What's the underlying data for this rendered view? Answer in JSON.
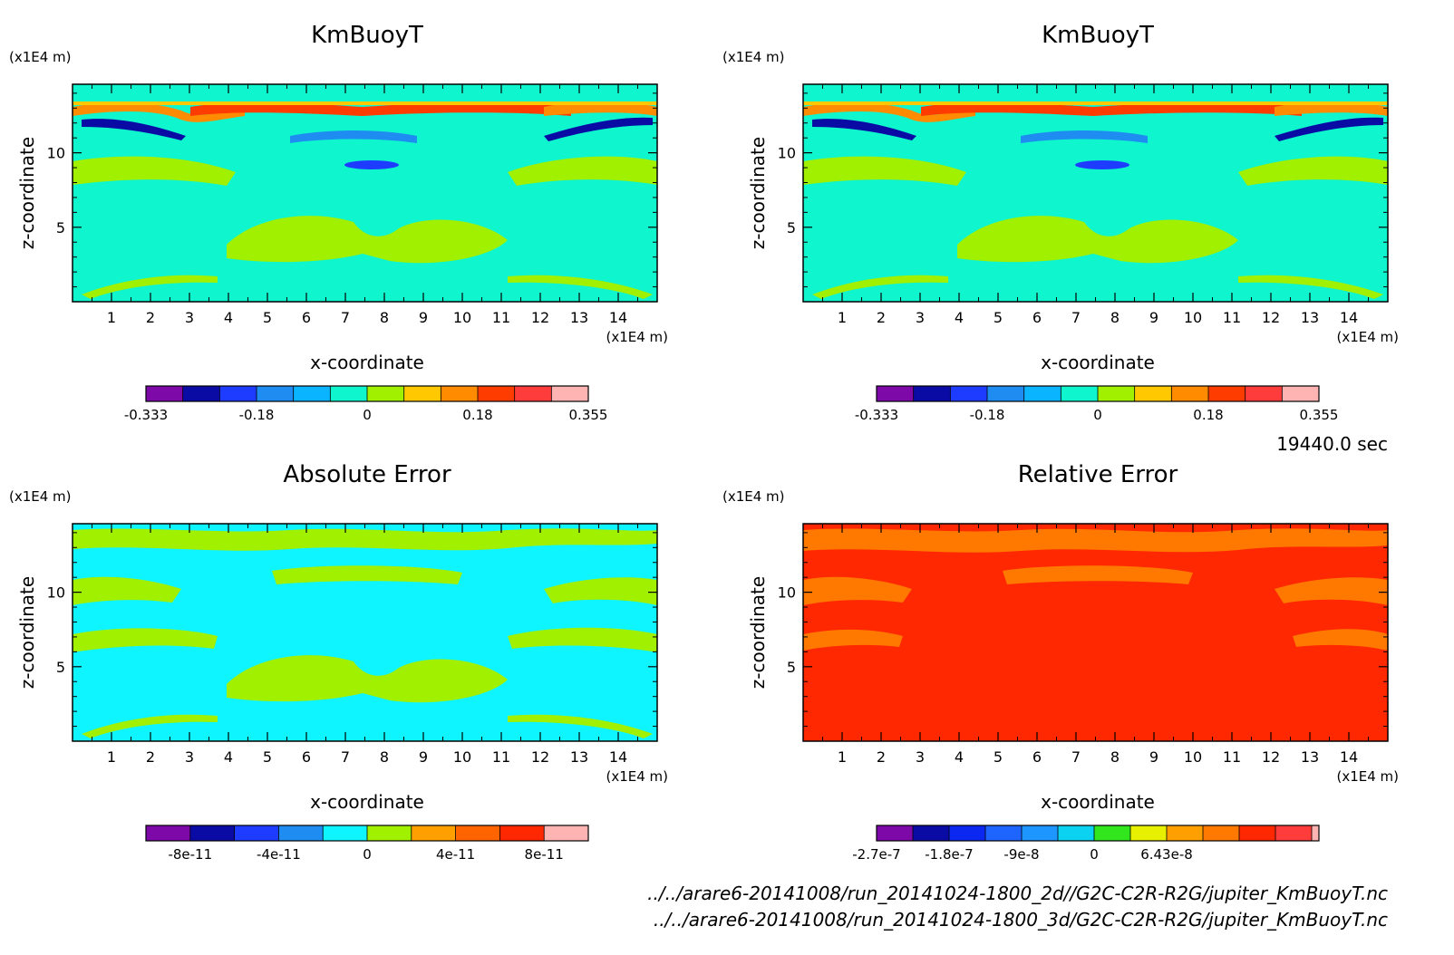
{
  "chart_data": [
    {
      "type": "heatmap",
      "title": "KmBuoyT",
      "xlabel": "x-coordinate",
      "ylabel": "z-coordinate",
      "xunit": "(x1E4 m)",
      "yunit": "(x1E4 m)",
      "xlim": [
        0,
        15
      ],
      "ylim": [
        0,
        14.6
      ],
      "xticks": [
        "1",
        "2",
        "3",
        "4",
        "5",
        "6",
        "7",
        "8",
        "9",
        "10",
        "11",
        "12",
        "13",
        "14"
      ],
      "yticks": [
        "5",
        "10"
      ],
      "colorbar": {
        "colors": [
          "#7d0aa8",
          "#0a0aa5",
          "#1e3cff",
          "#1e8cf0",
          "#0ab4ff",
          "#0ff5cd",
          "#a0f000",
          "#ffc800",
          "#ff8c00",
          "#ff3c00",
          "#ff3c3c",
          "#ffb4b4"
        ],
        "labels": [
          "-0.333",
          "-0.18",
          "0",
          "0.18",
          "0.355"
        ],
        "label_positions": [
          0,
          3,
          6,
          9,
          12
        ]
      },
      "background": "#0ff5cd",
      "features": "contour field: warm band near top, cool arcs below, yellow-green patches in middle"
    },
    {
      "type": "heatmap",
      "title": "KmBuoyT",
      "xlabel": "x-coordinate",
      "ylabel": "z-coordinate",
      "xunit": "(x1E4 m)",
      "yunit": "(x1E4 m)",
      "xlim": [
        0,
        15
      ],
      "ylim": [
        0,
        14.6
      ],
      "xticks": [
        "1",
        "2",
        "3",
        "4",
        "5",
        "6",
        "7",
        "8",
        "9",
        "10",
        "11",
        "12",
        "13",
        "14"
      ],
      "yticks": [
        "5",
        "10"
      ],
      "colorbar": {
        "colors": [
          "#7d0aa8",
          "#0a0aa5",
          "#1e3cff",
          "#1e8cf0",
          "#0ab4ff",
          "#0ff5cd",
          "#a0f000",
          "#ffc800",
          "#ff8c00",
          "#ff3c00",
          "#ff3c3c",
          "#ffb4b4"
        ],
        "labels": [
          "-0.333",
          "-0.18",
          "0",
          "0.18",
          "0.355"
        ],
        "label_positions": [
          0,
          3,
          6,
          9,
          12
        ]
      },
      "background": "#0ff5cd"
    },
    {
      "type": "heatmap",
      "title": "Absolute Error",
      "xlabel": "x-coordinate",
      "ylabel": "z-coordinate",
      "xunit": "(x1E4 m)",
      "yunit": "(x1E4 m)",
      "xlim": [
        0,
        15
      ],
      "ylim": [
        0,
        14.6
      ],
      "xticks": [
        "1",
        "2",
        "3",
        "4",
        "5",
        "6",
        "7",
        "8",
        "9",
        "10",
        "11",
        "12",
        "13",
        "14"
      ],
      "yticks": [
        "5",
        "10"
      ],
      "colorbar": {
        "colors": [
          "#7d0aa8",
          "#0a0aa5",
          "#1e3cff",
          "#1e8cf0",
          "#0ff5ff",
          "#a0f000",
          "#ffa000",
          "#ff6400",
          "#ff2800",
          "#ffb4b4"
        ],
        "labels": [
          "-8e-11",
          "-4e-11",
          "0",
          "4e-11",
          "8e-11"
        ],
        "label_positions": [
          1,
          3,
          5,
          7,
          9
        ]
      },
      "background": "#0ff5ff"
    },
    {
      "type": "heatmap",
      "title": "Relative Error",
      "xlabel": "x-coordinate",
      "ylabel": "z-coordinate",
      "xunit": "(x1E4 m)",
      "yunit": "(x1E4 m)",
      "xlim": [
        0,
        15
      ],
      "ylim": [
        0,
        14.6
      ],
      "xticks": [
        "1",
        "2",
        "3",
        "4",
        "5",
        "6",
        "7",
        "8",
        "9",
        "10",
        "11",
        "12",
        "13",
        "14"
      ],
      "yticks": [
        "5",
        "10"
      ],
      "colorbar": {
        "colors": [
          "#7d0aa8",
          "#0a0aa5",
          "#0a28f0",
          "#1e64ff",
          "#1e96ff",
          "#0ad2f0",
          "#32e61e",
          "#e6f000",
          "#ffa000",
          "#ff7800",
          "#ff2800",
          "#ff3c3c",
          "#ffb4b4"
        ],
        "widths": [
          1,
          1,
          1,
          1,
          1,
          1,
          1,
          1,
          1,
          1,
          1,
          1,
          0.2
        ],
        "labels": [
          "-2.7e-7",
          "-1.8e-7",
          "-9e-8",
          "0",
          "6.43e-8"
        ],
        "label_positions": [
          0,
          2,
          4,
          6,
          8
        ]
      },
      "background": "#ff2800"
    }
  ],
  "time_label": "19440.0 sec",
  "files": [
    "../../arare6-20141008/run_20141024-1800_2d//G2C-C2R-R2G/jupiter_KmBuoyT.nc",
    "../../arare6-20141008/run_20141024-1800_3d/G2C-C2R-R2G/jupiter_KmBuoyT.nc"
  ]
}
